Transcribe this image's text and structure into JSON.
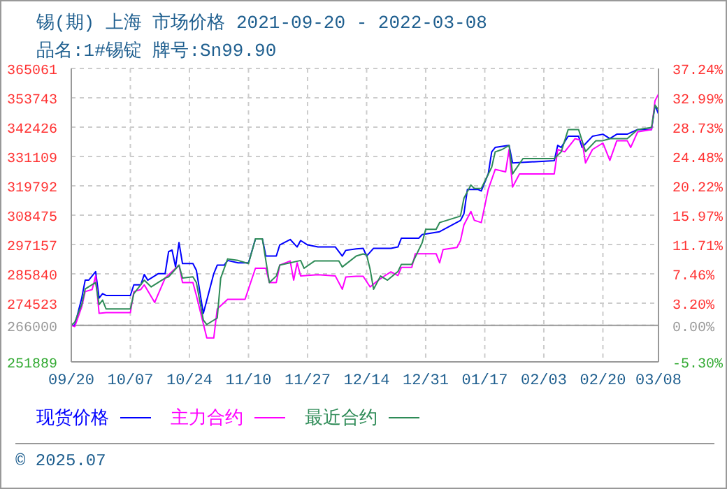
{
  "chart_data": {
    "type": "line",
    "title": "锡(期) 上海 市场价格 2021-09-20 - 2022-03-08",
    "subtitle": "品名:1#锡锭 牌号:Sn99.90",
    "annotations": [
      "© 2025.07"
    ],
    "xlim": [
      "2021-09-20",
      "2022-03-08"
    ],
    "xticks": [
      {
        "value": "2021-09-20",
        "label": "09/20"
      },
      {
        "value": "2021-10-07",
        "label": "10/07"
      },
      {
        "value": "2021-10-24",
        "label": "10/24"
      },
      {
        "value": "2021-11-10",
        "label": "11/10"
      },
      {
        "value": "2021-11-27",
        "label": "11/27"
      },
      {
        "value": "2021-12-14",
        "label": "12/14"
      },
      {
        "value": "2021-12-31",
        "label": "12/31"
      },
      {
        "value": "2022-01-17",
        "label": "01/17"
      },
      {
        "value": "2022-02-03",
        "label": "02/03"
      },
      {
        "value": "2022-02-20",
        "label": "02/20"
      },
      {
        "value": "2022-03-08",
        "label": "03/08"
      }
    ],
    "ylim": [
      251889,
      365061
    ],
    "yticks": [
      251889,
      266000,
      274523,
      285840,
      297157,
      308475,
      319792,
      331109,
      342426,
      353743,
      365061
    ],
    "y2lim": [
      -5.3,
      37.24
    ],
    "y2ticks": [
      {
        "value": -5.3,
        "label": "-5.30%"
      },
      {
        "value": 0,
        "label": "0.00%"
      },
      {
        "value": 3.2,
        "label": "3.20%"
      },
      {
        "value": 7.46,
        "label": "7.46%"
      },
      {
        "value": 11.71,
        "label": "11.71%"
      },
      {
        "value": 15.97,
        "label": "15.97%"
      },
      {
        "value": 20.22,
        "label": "20.22%"
      },
      {
        "value": 24.48,
        "label": "24.48%"
      },
      {
        "value": 28.73,
        "label": "28.73%"
      },
      {
        "value": 32.99,
        "label": "32.99%"
      },
      {
        "value": 37.24,
        "label": "37.24%"
      }
    ],
    "ref_lines": [
      {
        "axis": "y",
        "value": 266000,
        "color": "#999999"
      }
    ],
    "grid": true,
    "legend": "bottom",
    "line_style": "solid",
    "series": [
      {
        "name": "现货价格",
        "color": "#0000ff",
        "x": [
          "2021-09-20",
          "2021-09-21",
          "2021-09-23",
          "2021-09-24",
          "2021-09-25",
          "2021-09-27",
          "2021-09-28",
          "2021-09-29",
          "2021-09-30",
          "2021-10-07",
          "2021-10-08",
          "2021-10-10",
          "2021-10-11",
          "2021-10-12",
          "2021-10-15",
          "2021-10-17",
          "2021-10-18",
          "2021-10-19",
          "2021-10-20",
          "2021-10-21",
          "2021-10-22",
          "2021-10-25",
          "2021-10-26",
          "2021-10-28",
          "2021-10-29",
          "2021-10-31",
          "2021-11-01",
          "2021-11-03",
          "2021-11-04",
          "2021-11-07",
          "2021-11-10",
          "2021-11-12",
          "2021-11-14",
          "2021-11-15",
          "2021-11-18",
          "2021-11-19",
          "2021-11-22",
          "2021-11-24",
          "2021-11-25",
          "2021-11-27",
          "2021-11-30",
          "2021-12-05",
          "2021-12-07",
          "2021-12-08",
          "2021-12-11",
          "2021-12-13",
          "2021-12-14",
          "2021-12-16",
          "2021-12-21",
          "2021-12-23",
          "2021-12-24",
          "2021-12-29",
          "2021-12-30",
          "2022-01-04",
          "2022-01-10",
          "2022-01-11",
          "2022-01-12",
          "2022-01-15",
          "2022-01-16",
          "2022-01-18",
          "2022-01-19",
          "2022-01-20",
          "2022-01-24",
          "2022-01-25",
          "2022-02-06",
          "2022-02-07",
          "2022-02-08",
          "2022-02-10",
          "2022-02-13",
          "2022-02-14",
          "2022-02-17",
          "2022-02-20",
          "2022-02-22",
          "2022-02-24",
          "2022-02-27",
          "2022-03-02",
          "2022-03-06",
          "2022-03-07",
          "2022-03-08"
        ],
        "values": [
          266000,
          266000,
          276500,
          283400,
          283400,
          286700,
          276500,
          278200,
          277500,
          277500,
          281600,
          281600,
          285600,
          283400,
          285900,
          285900,
          294400,
          295000,
          288500,
          297900,
          289800,
          289800,
          287200,
          270600,
          275700,
          285900,
          289200,
          289200,
          291000,
          290100,
          290100,
          299300,
          299300,
          292700,
          292700,
          297000,
          299100,
          296200,
          298700,
          297000,
          296200,
          296200,
          292700,
          294900,
          295500,
          295700,
          292700,
          295700,
          295700,
          296200,
          299600,
          299600,
          301000,
          302100,
          306400,
          309000,
          318400,
          318400,
          317800,
          324400,
          332900,
          334600,
          335400,
          328600,
          329500,
          335400,
          334600,
          338900,
          338900,
          334600,
          338900,
          339700,
          338000,
          339700,
          339700,
          341500,
          341500,
          350900,
          347500
        ]
      },
      {
        "name": "主力合约",
        "color": "#ff00ff",
        "x": [
          "2021-09-20",
          "2021-09-21",
          "2021-09-23",
          "2021-09-24",
          "2021-09-26",
          "2021-09-27",
          "2021-09-28",
          "2021-09-30",
          "2021-10-07",
          "2021-10-08",
          "2021-10-10",
          "2021-10-11",
          "2021-10-14",
          "2021-10-17",
          "2021-10-21",
          "2021-10-22",
          "2021-10-25",
          "2021-10-26",
          "2021-10-29",
          "2021-10-31",
          "2021-11-01",
          "2021-11-04",
          "2021-11-09",
          "2021-11-12",
          "2021-11-15",
          "2021-11-16",
          "2021-11-18",
          "2021-11-19",
          "2021-11-22",
          "2021-11-23",
          "2021-11-24",
          "2021-11-25",
          "2021-11-30",
          "2021-12-05",
          "2021-12-07",
          "2021-12-08",
          "2021-12-11",
          "2021-12-13",
          "2021-12-15",
          "2021-12-17",
          "2021-12-19",
          "2021-12-21",
          "2021-12-23",
          "2021-12-24",
          "2021-12-27",
          "2021-12-28",
          "2022-01-03",
          "2022-01-04",
          "2022-01-05",
          "2022-01-09",
          "2022-01-10",
          "2022-01-11",
          "2022-01-13",
          "2022-01-14",
          "2022-01-16",
          "2022-01-18",
          "2022-01-20",
          "2022-01-23",
          "2022-01-24",
          "2022-01-25",
          "2022-01-27",
          "2022-02-06",
          "2022-02-07",
          "2022-02-09",
          "2022-02-12",
          "2022-02-14",
          "2022-02-15",
          "2022-02-17",
          "2022-02-20",
          "2022-02-22",
          "2022-02-24",
          "2022-02-27",
          "2022-02-28",
          "2022-03-02",
          "2022-03-06",
          "2022-03-07",
          "2022-03-08"
        ],
        "values": [
          266000,
          265500,
          273100,
          279000,
          279800,
          285000,
          270600,
          270900,
          270900,
          279000,
          279800,
          281600,
          274800,
          284200,
          289200,
          282500,
          282500,
          277500,
          261100,
          261100,
          272300,
          276000,
          276000,
          288000,
          288000,
          282500,
          282500,
          289200,
          290800,
          283400,
          290100,
          285000,
          285500,
          285000,
          279900,
          284600,
          284900,
          284900,
          280800,
          283000,
          284900,
          286600,
          285200,
          288300,
          288300,
          293600,
          293600,
          290100,
          295200,
          296000,
          298600,
          304700,
          309900,
          306500,
          305600,
          318400,
          326100,
          325200,
          333800,
          319300,
          324400,
          324400,
          333800,
          332900,
          338000,
          337200,
          328600,
          333800,
          336300,
          329600,
          337200,
          337200,
          334600,
          340600,
          341500,
          352600,
          355200
        ]
      },
      {
        "name": "最近合约",
        "color": "#2e8b57",
        "x": [
          "2021-09-20",
          "2021-09-21",
          "2021-09-23",
          "2021-09-24",
          "2021-09-27",
          "2021-09-28",
          "2021-09-29",
          "2021-09-30",
          "2021-10-07",
          "2021-10-08",
          "2021-10-11",
          "2021-10-13",
          "2021-10-17",
          "2021-10-18",
          "2021-10-21",
          "2021-10-22",
          "2021-10-25",
          "2021-10-26",
          "2021-10-28",
          "2021-10-29",
          "2021-11-01",
          "2021-11-02",
          "2021-11-04",
          "2021-11-07",
          "2021-11-10",
          "2021-11-12",
          "2021-11-14",
          "2021-11-16",
          "2021-11-18",
          "2021-11-19",
          "2021-11-25",
          "2021-11-26",
          "2021-11-29",
          "2021-12-06",
          "2021-12-07",
          "2021-12-11",
          "2021-12-13",
          "2021-12-14",
          "2021-12-15",
          "2021-12-16",
          "2021-12-18",
          "2021-12-20",
          "2021-12-23",
          "2021-12-24",
          "2021-12-27",
          "2021-12-30",
          "2021-12-31",
          "2022-01-03",
          "2022-01-04",
          "2022-01-10",
          "2022-01-11",
          "2022-01-13",
          "2022-01-14",
          "2022-01-16",
          "2022-01-19",
          "2022-01-20",
          "2022-01-22",
          "2022-01-24",
          "2022-01-25",
          "2022-01-28",
          "2022-02-06",
          "2022-02-08",
          "2022-02-10",
          "2022-02-13",
          "2022-02-15",
          "2022-02-18",
          "2022-02-20",
          "2022-02-22",
          "2022-02-24",
          "2022-02-27",
          "2022-03-02",
          "2022-03-06",
          "2022-03-07",
          "2022-03-08"
        ],
        "values": [
          266000,
          267200,
          274000,
          280000,
          282500,
          274000,
          275700,
          272300,
          272300,
          278200,
          283400,
          280800,
          284200,
          284700,
          289200,
          284200,
          284700,
          282500,
          268000,
          266300,
          268800,
          284200,
          291600,
          291000,
          289800,
          299300,
          299300,
          282500,
          285000,
          289200,
          291000,
          288000,
          290800,
          290800,
          288500,
          292700,
          293500,
          293100,
          287600,
          279900,
          285000,
          283400,
          286700,
          289500,
          289500,
          297900,
          303000,
          303000,
          305600,
          308100,
          315000,
          320100,
          318800,
          318800,
          327000,
          332900,
          333800,
          335400,
          324400,
          330300,
          330300,
          332900,
          341500,
          341500,
          333000,
          337200,
          337200,
          338000,
          338000,
          338000,
          341500,
          342300,
          350900,
          349200
        ]
      }
    ]
  }
}
